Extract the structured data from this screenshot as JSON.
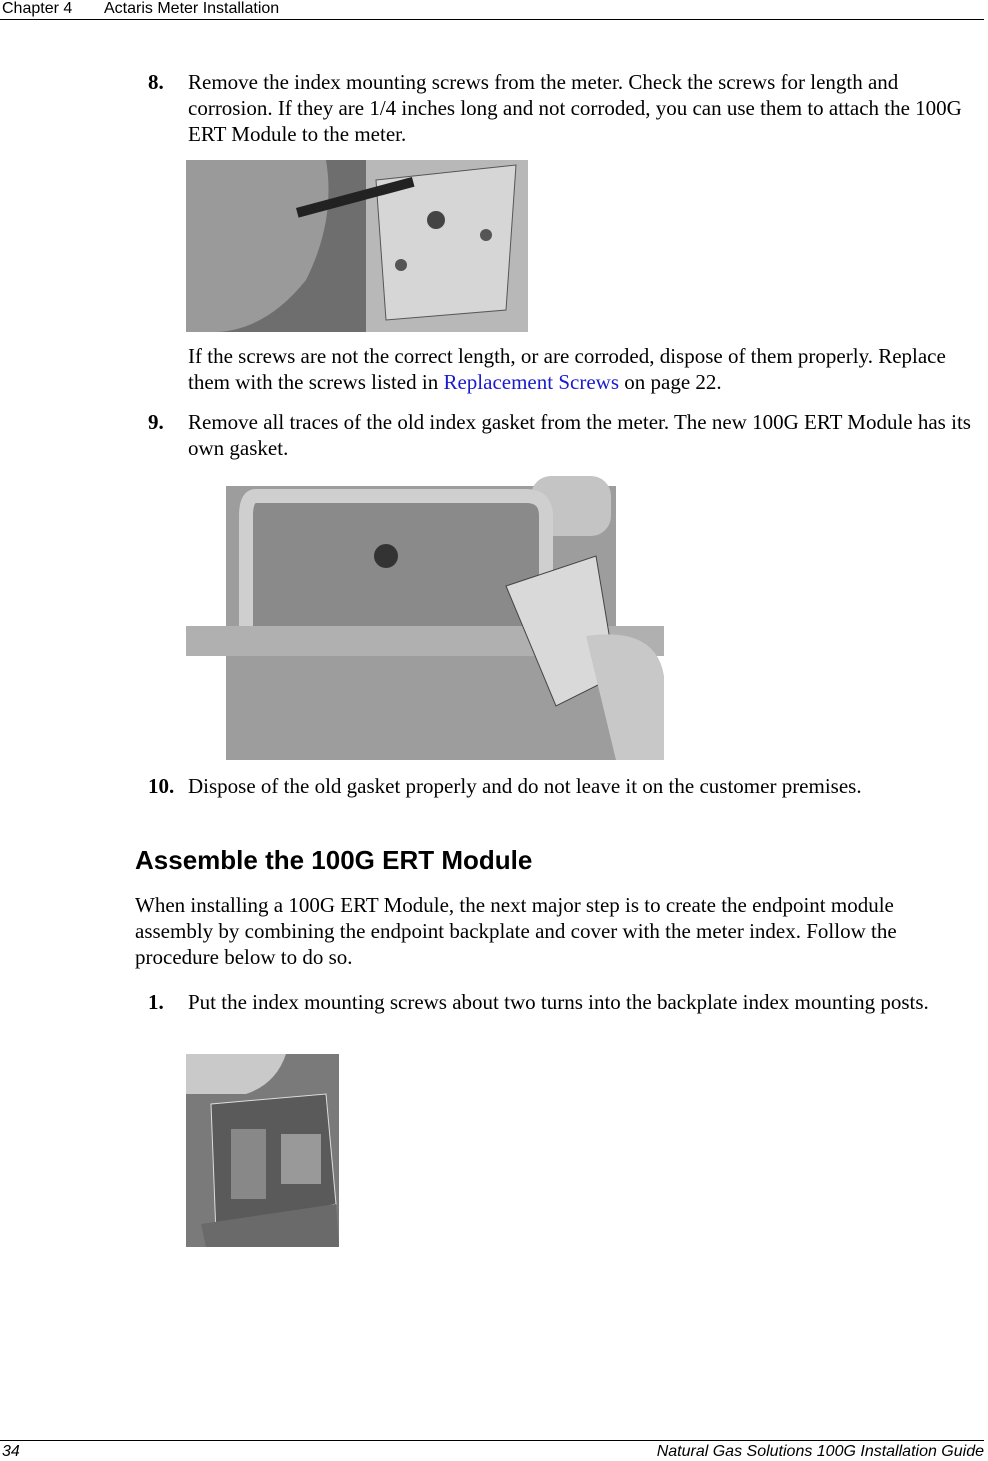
{
  "header": {
    "chapter": "Chapter 4",
    "title": "Actaris Meter Installation"
  },
  "steps_before": [
    {
      "number": "8.",
      "text": "Remove the index mounting screws from the meter. Check the screws for length and corrosion. If they are 1/4 inches long and not corroded, you can use them to attach the 100G ERT Module to the meter.",
      "note": {
        "before": "If the screws are not the correct length, or are corroded, dispose of them properly. Replace them with the screws listed in ",
        "link": "Replacement Screws",
        "after": " on page 22."
      }
    },
    {
      "number": "9.",
      "text": "Remove all traces of the old index gasket from the meter. The new 100G ERT Module has its own gasket."
    },
    {
      "number": "10.",
      "text": "Dispose of the old gasket properly and do not leave it on the customer premises."
    }
  ],
  "section": {
    "heading": "Assemble the 100G ERT Module",
    "paragraph": "When installing a 100G ERT Module, the next major step is to create the endpoint module assembly by combining the endpoint backplate and cover with the meter index. Follow the procedure below to do so.",
    "steps": [
      {
        "number": "1.",
        "text": "Put the index mounting screws about two turns into the backplate index mounting posts."
      }
    ]
  },
  "footer": {
    "page": "34",
    "title": "Natural Gas Solutions 100G Installation Guide"
  }
}
